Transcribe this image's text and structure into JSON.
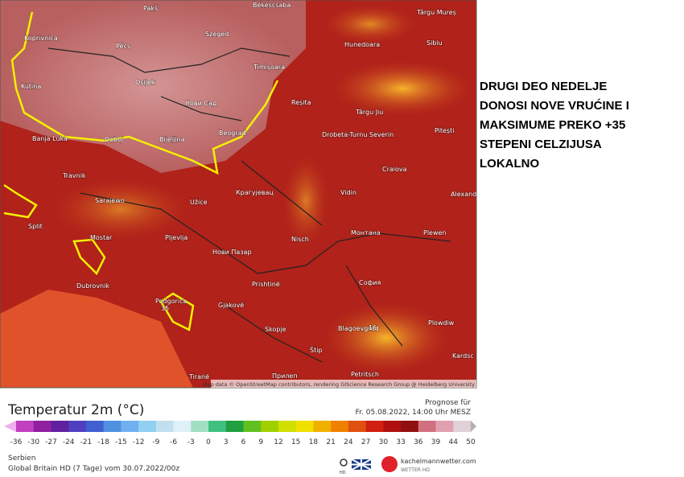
{
  "headline": {
    "lines": [
      "DRUGI DEO NEDELJE",
      "DONOSI NOVE VRUĆINE I",
      "MAKSIMUME PREKO +35",
      "STEPENI CELZIJUSA",
      "LOKALNO"
    ]
  },
  "map": {
    "labels": [
      "Pakš",
      "Békéscsaba",
      "Târgu Mureș",
      "Koprivnica",
      "Pécs",
      "Szeged",
      "Sibiu",
      "Hunedoara",
      "Timișoara",
      "Kutina",
      "Osijek",
      "Нови Сад",
      "Reșita",
      "Târgu Jiu",
      "Pitești",
      "Beograd",
      "Drobeta-Turnu Severin",
      "Banja Luka",
      "Doboj",
      "Bijeljina",
      "Travnik",
      "Craiova",
      "Sarajewo",
      "Крагујевац",
      "Užice",
      "Vidin",
      "Alexand",
      "Split",
      "Mostar",
      "Pljevlja",
      "Nisch",
      "Монтана",
      "Plewen",
      "Нови Пазар",
      "Dubrovnik",
      "Prishtinë",
      "София",
      "Podgorica",
      "Gjakovë",
      "Plowdiw",
      "Blagoevgrad",
      "Skopje",
      "Štip",
      "Kardsc",
      "Tiranë",
      "Petritsch",
      "Прилеп",
      "35",
      "16"
    ],
    "attribution": "Map data © OpenStreetMap contributors, rendering GIScience Research Group @ Heidelberg University"
  },
  "legend": {
    "title": "Temperatur 2m (°C)",
    "ticks": [
      -36,
      -30,
      -27,
      -24,
      -21,
      -18,
      -15,
      -12,
      -9,
      -6,
      -3,
      0,
      3,
      6,
      9,
      12,
      15,
      18,
      21,
      24,
      27,
      30,
      33,
      36,
      39,
      44,
      50
    ]
  },
  "forecast": {
    "label": "Prognose für",
    "time": "Fr. 05.08.2022, 14:00 Uhr MESZ"
  },
  "footer": {
    "region": "Serbien",
    "model": "Global Britain HD (7 Tage) vom 30.07.2022/00z",
    "brand": "kachelmannwetter.com",
    "brand_sub": "WETTER HD",
    "hd": "HD"
  }
}
